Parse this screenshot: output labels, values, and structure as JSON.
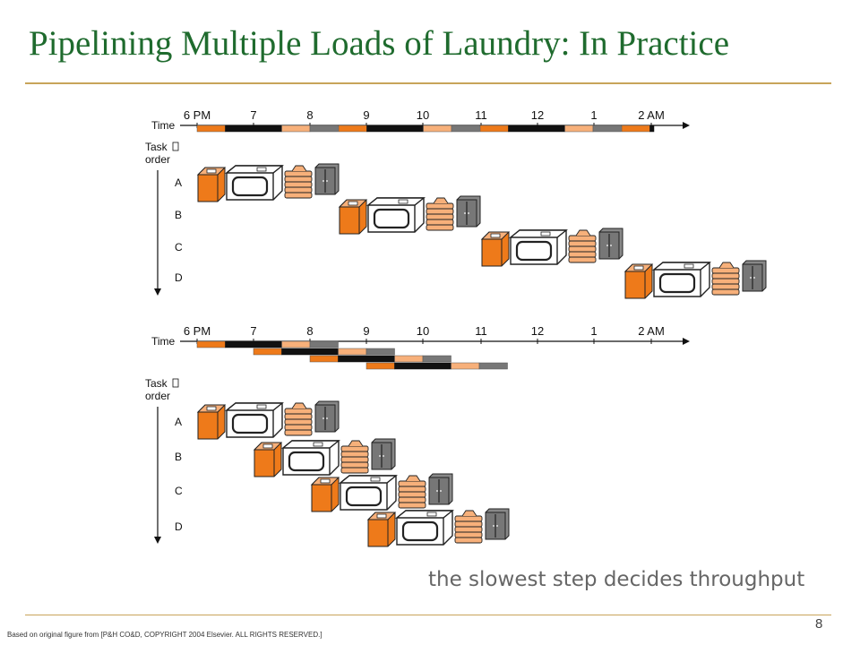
{
  "title": "Pipelining Multiple Loads of Laundry: In Practice",
  "caption": "the slowest step decides throughput",
  "page_number": "8",
  "credit": "Based on original figure from [P&H CO&D, COPYRIGHT 2004 Elsevier. ALL RIGHTS RESERVED.]",
  "colors": {
    "wash": "#ee7a1a",
    "dry": "#111111",
    "fold": "#f7b07a",
    "store": "#777777",
    "title": "#1f6b2e",
    "rule": "#c8a45a"
  },
  "icons": [
    "washer-icon",
    "dryer-icon",
    "folded-clothes-icon",
    "closet-icon"
  ],
  "diagrams": [
    {
      "time_label": "Time",
      "task_order_label": "Task\norder",
      "ticks": [
        "6 PM",
        "7",
        "8",
        "9",
        "10",
        "11",
        "12",
        "1",
        "2 AM"
      ],
      "tasks": [
        "A",
        "B",
        "C",
        "D"
      ],
      "mode": "sequential"
    },
    {
      "time_label": "Time",
      "task_order_label": "Task\norder",
      "ticks": [
        "6 PM",
        "7",
        "8",
        "9",
        "10",
        "11",
        "12",
        "1",
        "2 AM"
      ],
      "tasks": [
        "A",
        "B",
        "C",
        "D"
      ],
      "mode": "pipelined"
    }
  ]
}
